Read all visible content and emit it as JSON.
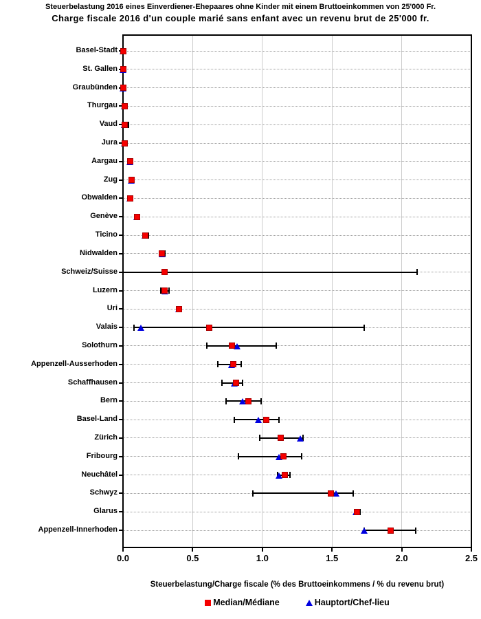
{
  "header": {
    "title_de": "Steuerbelastung 2016 eines Einverdiener-Ehepaares ohne Kinder mit einem Bruttoeinkommen von 25'000 Fr.",
    "title_fr": "Charge fiscale 2016 d'un couple marié sans enfant avec un revenu brut de 25'000 fr."
  },
  "chart_data": {
    "type": "scatter",
    "title": "Steuerbelastung 2016 eines Einverdiener-Ehepaares ohne Kinder mit einem Bruttoeinkommen von 25'000 Fr.",
    "subtitle": "Charge fiscale 2016 d'un couple marié sans enfant avec un revenu brut de 25'000 fr.",
    "xlabel": "Steuerbelastung/Charge fiscale (% des Bruttoeinkommens / % du revenu brut)",
    "ylabel": "",
    "xlim": [
      0.0,
      2.5
    ],
    "xticks": [
      "0.0",
      "0.5",
      "1.0",
      "1.5",
      "2.0",
      "2.5"
    ],
    "xtick_values": [
      0.0,
      0.5,
      1.0,
      1.5,
      2.0,
      2.5
    ],
    "gridlines_x": [
      0.5,
      1.0,
      1.5,
      2.0
    ],
    "grid": "vertical-solid-plus-dotted-row-guides",
    "legend_position": "bottom",
    "colors": {
      "median": "#f50000",
      "hauptort": "#0000e0",
      "range": "#000000"
    },
    "legend": [
      {
        "label": "Median/Médiane",
        "shape": "square",
        "color": "#f50000"
      },
      {
        "label": "Hauptort/Chef-lieu",
        "shape": "triangle",
        "color": "#0000e0"
      }
    ],
    "series_note": "rows sorted by median ascending; min/max are black range bars with end caps",
    "rows": [
      {
        "label": "Basel-Stadt",
        "median": 0.0,
        "hauptort": 0.0,
        "min": 0.0,
        "max": 0.01
      },
      {
        "label": "St. Gallen",
        "median": 0.0,
        "hauptort": 0.0,
        "min": 0.0,
        "max": 0.01
      },
      {
        "label": "Graubünden",
        "median": 0.0,
        "hauptort": 0.0,
        "min": 0.0,
        "max": 0.01
      },
      {
        "label": "Thurgau",
        "median": 0.01,
        "hauptort": 0.01,
        "min": 0.0,
        "max": 0.02
      },
      {
        "label": "Vaud",
        "median": 0.01,
        "hauptort": 0.01,
        "min": 0.0,
        "max": 0.04
      },
      {
        "label": "Jura",
        "median": 0.01,
        "hauptort": 0.01,
        "min": 0.0,
        "max": 0.02
      },
      {
        "label": "Aargau",
        "median": 0.05,
        "hauptort": 0.05,
        "min": 0.04,
        "max": 0.06
      },
      {
        "label": "Zug",
        "median": 0.06,
        "hauptort": 0.06,
        "min": 0.05,
        "max": 0.08
      },
      {
        "label": "Obwalden",
        "median": 0.05,
        "hauptort": 0.05,
        "min": 0.04,
        "max": 0.07
      },
      {
        "label": "Genève",
        "median": 0.1,
        "hauptort": 0.1,
        "min": 0.09,
        "max": 0.12
      },
      {
        "label": "Ticino",
        "median": 0.16,
        "hauptort": 0.16,
        "min": 0.15,
        "max": 0.18
      },
      {
        "label": "Nidwalden",
        "median": 0.28,
        "hauptort": 0.28,
        "min": 0.26,
        "max": 0.3
      },
      {
        "label": "Schweiz/Suisse",
        "median": 0.3,
        "hauptort": null,
        "min": 0.0,
        "max": 2.11
      },
      {
        "label": "Luzern",
        "median": 0.3,
        "hauptort": 0.3,
        "min": 0.27,
        "max": 0.33
      },
      {
        "label": "Uri",
        "median": 0.4,
        "hauptort": 0.4,
        "min": 0.39,
        "max": 0.42
      },
      {
        "label": "Valais",
        "median": 0.62,
        "hauptort": 0.13,
        "min": 0.08,
        "max": 1.73
      },
      {
        "label": "Solothurn",
        "median": 0.78,
        "hauptort": 0.82,
        "min": 0.6,
        "max": 1.1
      },
      {
        "label": "Appenzell-Ausserhoden",
        "median": 0.79,
        "hauptort": 0.78,
        "min": 0.68,
        "max": 0.85
      },
      {
        "label": "Schaffhausen",
        "median": 0.81,
        "hauptort": 0.8,
        "min": 0.71,
        "max": 0.86
      },
      {
        "label": "Bern",
        "median": 0.9,
        "hauptort": 0.86,
        "min": 0.74,
        "max": 0.99
      },
      {
        "label": "Basel-Land",
        "median": 1.03,
        "hauptort": 0.97,
        "min": 0.8,
        "max": 1.12
      },
      {
        "label": "Zürich",
        "median": 1.13,
        "hauptort": 1.27,
        "min": 0.98,
        "max": 1.29
      },
      {
        "label": "Fribourg",
        "median": 1.15,
        "hauptort": 1.12,
        "min": 0.83,
        "max": 1.28
      },
      {
        "label": "Neuchâtel",
        "median": 1.16,
        "hauptort": 1.12,
        "min": 1.11,
        "max": 1.2
      },
      {
        "label": "Schwyz",
        "median": 1.49,
        "hauptort": 1.53,
        "min": 0.93,
        "max": 1.65
      },
      {
        "label": "Glarus",
        "median": 1.68,
        "hauptort": 1.67,
        "min": 1.66,
        "max": 1.7
      },
      {
        "label": "Appenzell-Innerhoden",
        "median": 1.92,
        "hauptort": 1.73,
        "min": 1.73,
        "max": 2.1
      }
    ]
  }
}
